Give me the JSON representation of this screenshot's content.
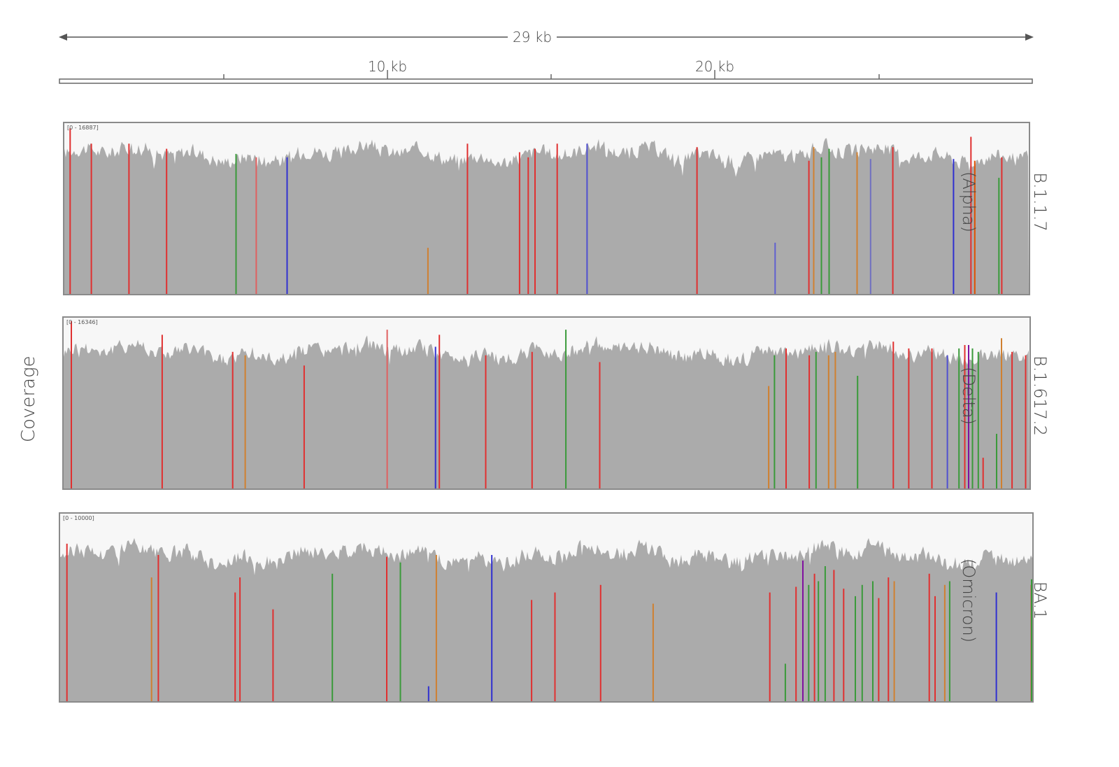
{
  "ruler": {
    "span_label": "29 kb",
    "tick_labels": [
      "10 kb",
      "20 kb"
    ]
  },
  "y_axis_label": "Coverage",
  "tracks": [
    {
      "id": "alpha",
      "range_label": "[0 - 16887]",
      "name_line1": "B.1.1.7",
      "name_line2": "(Alpha)",
      "variants": [
        {
          "pos": 0.006,
          "color": "#e03030",
          "h": 0.97
        },
        {
          "pos": 0.028,
          "color": "#e03030",
          "h": 0.88
        },
        {
          "pos": 0.067,
          "color": "#e03030",
          "h": 0.88
        },
        {
          "pos": 0.106,
          "color": "#e03030",
          "h": 0.85
        },
        {
          "pos": 0.178,
          "color": "#3a9a3a",
          "h": 0.82
        },
        {
          "pos": 0.199,
          "color": "#e06060",
          "h": 0.8
        },
        {
          "pos": 0.231,
          "color": "#3030d0",
          "h": 0.8
        },
        {
          "pos": 0.377,
          "color": "#d08030",
          "h": 0.27
        },
        {
          "pos": 0.418,
          "color": "#e03030",
          "h": 0.88
        },
        {
          "pos": 0.472,
          "color": "#e03030",
          "h": 0.83
        },
        {
          "pos": 0.481,
          "color": "#e03030",
          "h": 0.8
        },
        {
          "pos": 0.488,
          "color": "#e03030",
          "h": 0.85
        },
        {
          "pos": 0.511,
          "color": "#e03030",
          "h": 0.88
        },
        {
          "pos": 0.542,
          "color": "#5050d0",
          "h": 0.88
        },
        {
          "pos": 0.656,
          "color": "#e03030",
          "h": 0.86
        },
        {
          "pos": 0.737,
          "color": "#6060d0",
          "h": 0.3
        },
        {
          "pos": 0.772,
          "color": "#e03030",
          "h": 0.78
        },
        {
          "pos": 0.777,
          "color": "#d08030",
          "h": 0.86
        },
        {
          "pos": 0.785,
          "color": "#3a9a3a",
          "h": 0.8
        },
        {
          "pos": 0.793,
          "color": "#3a9a3a",
          "h": 0.85
        },
        {
          "pos": 0.822,
          "color": "#d08030",
          "h": 0.83
        },
        {
          "pos": 0.836,
          "color": "#7070c0",
          "h": 0.79
        },
        {
          "pos": 0.859,
          "color": "#e03030",
          "h": 0.86
        },
        {
          "pos": 0.922,
          "color": "#3030d0",
          "h": 0.79
        },
        {
          "pos": 0.94,
          "color": "#e03030",
          "h": 0.92
        },
        {
          "pos": 0.944,
          "color": "#e05000",
          "h": 0.78
        },
        {
          "pos": 0.969,
          "color": "#3a9a3a",
          "h": 0.68
        },
        {
          "pos": 0.972,
          "color": "#e03030",
          "h": 0.8
        }
      ]
    },
    {
      "id": "delta",
      "range_label": "[0 - 16346]",
      "name_line1": "B.1.617.2",
      "name_line2": "(Delta)",
      "variants": [
        {
          "pos": 0.008,
          "color": "#e03030",
          "h": 0.98
        },
        {
          "pos": 0.102,
          "color": "#e03030",
          "h": 0.9
        },
        {
          "pos": 0.175,
          "color": "#e03030",
          "h": 0.8
        },
        {
          "pos": 0.188,
          "color": "#d08030",
          "h": 0.78
        },
        {
          "pos": 0.249,
          "color": "#e03030",
          "h": 0.72
        },
        {
          "pos": 0.335,
          "color": "#e06060",
          "h": 0.93
        },
        {
          "pos": 0.385,
          "color": "#3030d0",
          "h": 0.83
        },
        {
          "pos": 0.389,
          "color": "#e03030",
          "h": 0.9
        },
        {
          "pos": 0.437,
          "color": "#e03030",
          "h": 0.78
        },
        {
          "pos": 0.485,
          "color": "#e03030",
          "h": 0.8
        },
        {
          "pos": 0.52,
          "color": "#3a9a3a",
          "h": 0.93
        },
        {
          "pos": 0.555,
          "color": "#e03030",
          "h": 0.74
        },
        {
          "pos": 0.73,
          "color": "#d08030",
          "h": 0.6
        },
        {
          "pos": 0.736,
          "color": "#3a9a3a",
          "h": 0.78
        },
        {
          "pos": 0.748,
          "color": "#e03030",
          "h": 0.82
        },
        {
          "pos": 0.772,
          "color": "#e03030",
          "h": 0.78
        },
        {
          "pos": 0.779,
          "color": "#3a9a3a",
          "h": 0.8
        },
        {
          "pos": 0.792,
          "color": "#d08030",
          "h": 0.78
        },
        {
          "pos": 0.799,
          "color": "#d08030",
          "h": 0.8
        },
        {
          "pos": 0.822,
          "color": "#3a9a3a",
          "h": 0.66
        },
        {
          "pos": 0.859,
          "color": "#e03030",
          "h": 0.86
        },
        {
          "pos": 0.875,
          "color": "#e03030",
          "h": 0.82
        },
        {
          "pos": 0.899,
          "color": "#e03030",
          "h": 0.82
        },
        {
          "pos": 0.915,
          "color": "#5050d0",
          "h": 0.78
        },
        {
          "pos": 0.927,
          "color": "#3a9a3a",
          "h": 0.82
        },
        {
          "pos": 0.933,
          "color": "#e03030",
          "h": 0.84
        },
        {
          "pos": 0.937,
          "color": "#8010a0",
          "h": 0.84
        },
        {
          "pos": 0.941,
          "color": "#3a9a3a",
          "h": 0.82
        },
        {
          "pos": 0.947,
          "color": "#3a9a3a",
          "h": 0.8
        },
        {
          "pos": 0.952,
          "color": "#e03030",
          "h": 0.18
        },
        {
          "pos": 0.966,
          "color": "#3a9a3a",
          "h": 0.32
        },
        {
          "pos": 0.971,
          "color": "#d08030",
          "h": 0.88
        },
        {
          "pos": 0.982,
          "color": "#e03030",
          "h": 0.8
        },
        {
          "pos": 0.996,
          "color": "#e03030",
          "h": 0.78
        }
      ]
    },
    {
      "id": "omicron",
      "range_label": "[0 - 10000]",
      "name_line1": "BA.1",
      "name_line2": "(Omicron)",
      "variants": [
        {
          "pos": 0.007,
          "color": "#e03030",
          "h": 0.84
        },
        {
          "pos": 0.094,
          "color": "#d08030",
          "h": 0.66
        },
        {
          "pos": 0.101,
          "color": "#e03030",
          "h": 0.78
        },
        {
          "pos": 0.18,
          "color": "#e03030",
          "h": 0.58
        },
        {
          "pos": 0.185,
          "color": "#e03030",
          "h": 0.66
        },
        {
          "pos": 0.219,
          "color": "#e03030",
          "h": 0.49
        },
        {
          "pos": 0.28,
          "color": "#3a9a3a",
          "h": 0.68
        },
        {
          "pos": 0.336,
          "color": "#e03030",
          "h": 0.77
        },
        {
          "pos": 0.35,
          "color": "#3a9a3a",
          "h": 0.74
        },
        {
          "pos": 0.379,
          "color": "#3030d0",
          "h": 0.08
        },
        {
          "pos": 0.387,
          "color": "#d08030",
          "h": 0.78
        },
        {
          "pos": 0.444,
          "color": "#3030d0",
          "h": 0.78
        },
        {
          "pos": 0.485,
          "color": "#e03030",
          "h": 0.54
        },
        {
          "pos": 0.509,
          "color": "#e03030",
          "h": 0.58
        },
        {
          "pos": 0.556,
          "color": "#e03030",
          "h": 0.62
        },
        {
          "pos": 0.61,
          "color": "#d08030",
          "h": 0.52
        },
        {
          "pos": 0.73,
          "color": "#e03030",
          "h": 0.58
        },
        {
          "pos": 0.746,
          "color": "#3a9a3a",
          "h": 0.2
        },
        {
          "pos": 0.757,
          "color": "#e03030",
          "h": 0.61
        },
        {
          "pos": 0.764,
          "color": "#8010a0",
          "h": 0.75
        },
        {
          "pos": 0.77,
          "color": "#3a9a3a",
          "h": 0.62
        },
        {
          "pos": 0.776,
          "color": "#e03030",
          "h": 0.68
        },
        {
          "pos": 0.78,
          "color": "#3a9a3a",
          "h": 0.64
        },
        {
          "pos": 0.787,
          "color": "#3a9a3a",
          "h": 0.72
        },
        {
          "pos": 0.796,
          "color": "#e03030",
          "h": 0.7
        },
        {
          "pos": 0.806,
          "color": "#e03030",
          "h": 0.6
        },
        {
          "pos": 0.818,
          "color": "#3a9a3a",
          "h": 0.56
        },
        {
          "pos": 0.825,
          "color": "#3a9a3a",
          "h": 0.62
        },
        {
          "pos": 0.836,
          "color": "#3a9a3a",
          "h": 0.64
        },
        {
          "pos": 0.842,
          "color": "#e03030",
          "h": 0.55
        },
        {
          "pos": 0.852,
          "color": "#e03030",
          "h": 0.66
        },
        {
          "pos": 0.858,
          "color": "#d08030",
          "h": 0.64
        },
        {
          "pos": 0.894,
          "color": "#e03030",
          "h": 0.68
        },
        {
          "pos": 0.9,
          "color": "#e03030",
          "h": 0.56
        },
        {
          "pos": 0.91,
          "color": "#d08030",
          "h": 0.62
        },
        {
          "pos": 0.915,
          "color": "#3a9a3a",
          "h": 0.64
        },
        {
          "pos": 0.963,
          "color": "#3030d0",
          "h": 0.58
        },
        {
          "pos": 0.999,
          "color": "#e03030",
          "h": 0.62
        },
        {
          "pos": 1.004,
          "color": "#e03030",
          "h": 0.6
        },
        {
          "pos": 1.002,
          "color": "#3a9a3a",
          "h": 0.65
        }
      ]
    }
  ],
  "colors": {
    "coverage_fill": "#ababab",
    "track_background": "#f7f7f7",
    "border": "#8a8a8a"
  }
}
